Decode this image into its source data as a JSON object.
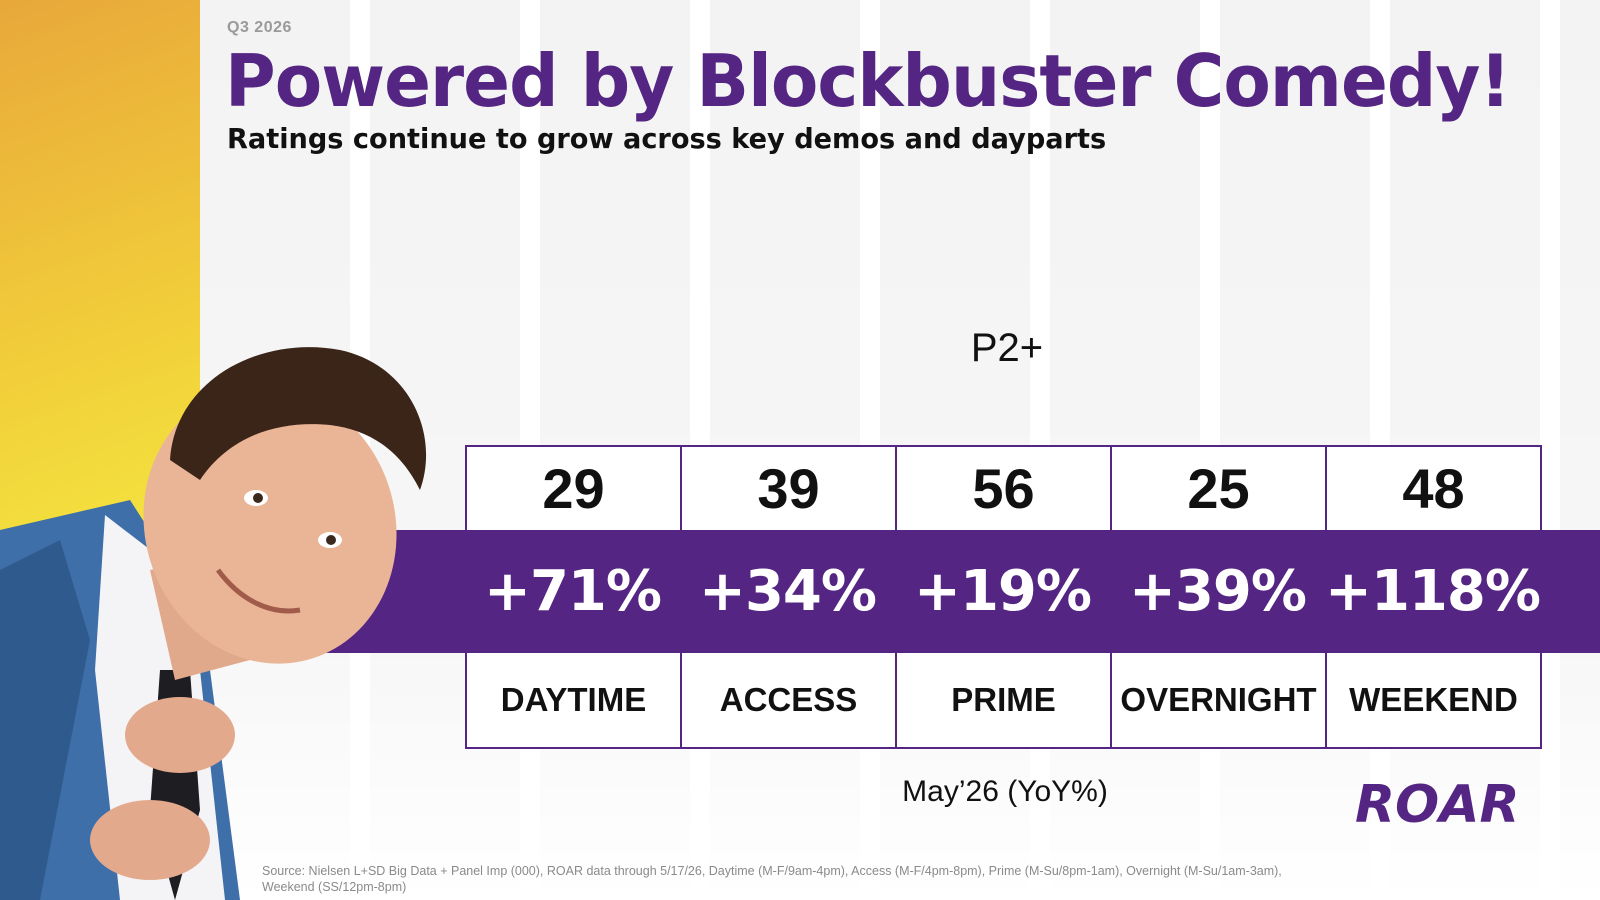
{
  "eyebrow": "Q3 2026",
  "title": "Powered by Blockbuster Comedy!",
  "subtitle": "Ratings continue to grow across key demos and dayparts",
  "demo": "P2+",
  "period": "May’26 (YoY%)",
  "brand": {
    "logo_text": "ROAR",
    "color": "#542583"
  },
  "columns": [
    {
      "value": "29",
      "change": "+71%",
      "daypart": "DAYTIME"
    },
    {
      "value": "39",
      "change": "+34%",
      "daypart": "ACCESS"
    },
    {
      "value": "56",
      "change": "+19%",
      "daypart": "PRIME"
    },
    {
      "value": "25",
      "change": "+39%",
      "daypart": "OVERNIGHT"
    },
    {
      "value": "48",
      "change": "+118%",
      "daypart": "WEEKEND"
    }
  ],
  "source": "Source: Nielsen L+SD Big Data + Panel Imp (000), ROAR data through 5/17/26, Daytime (M-F/9am-4pm), Access (M-F/4pm-8pm), Prime (M-Su/8pm-1am), Overnight (M-Su/1am-3am), Weekend (SS/12pm-8pm)"
}
